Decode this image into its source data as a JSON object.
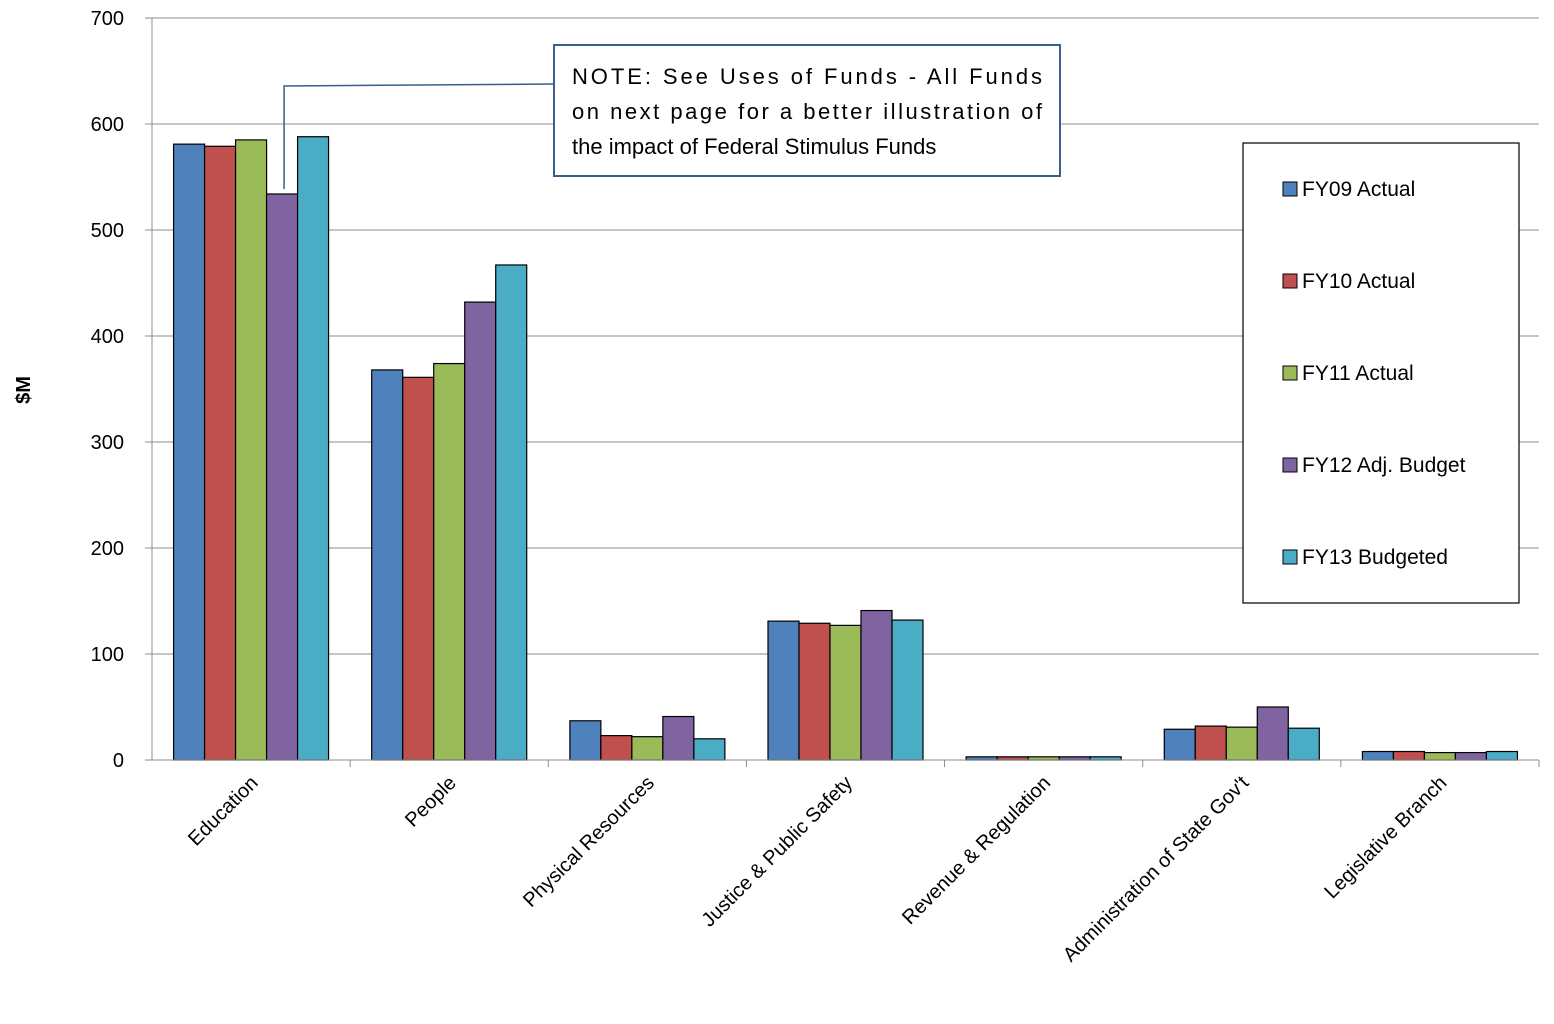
{
  "chart_data": {
    "type": "bar",
    "title": "",
    "xlabel": "",
    "ylabel": "$M",
    "ylim": [
      0,
      700
    ],
    "yticks": [
      0,
      100,
      200,
      300,
      400,
      500,
      600,
      700
    ],
    "grid": true,
    "legend_position": "right",
    "categories": [
      "Education",
      "People",
      "Physical Resources",
      "Justice & Public Safety",
      "Revenue & Regulation",
      "Administration of State Gov't",
      "Legislative Branch"
    ],
    "series": [
      {
        "name": "FY09 Actual",
        "color": "#4F81BD",
        "values": [
          581,
          368,
          37,
          131,
          3,
          29,
          8
        ]
      },
      {
        "name": "FY10 Actual",
        "color": "#C0504D",
        "values": [
          579,
          361,
          23,
          129,
          3,
          32,
          8
        ]
      },
      {
        "name": "FY11 Actual",
        "color": "#9BBB59",
        "values": [
          585,
          374,
          22,
          127,
          3,
          31,
          7
        ]
      },
      {
        "name": "FY12 Adj. Budget",
        "color": "#8064A2",
        "values": [
          534,
          432,
          41,
          141,
          3,
          50,
          7
        ]
      },
      {
        "name": "FY13 Budgeted",
        "color": "#4BACC6",
        "values": [
          588,
          467,
          20,
          132,
          3,
          30,
          8
        ]
      }
    ],
    "annotation": {
      "lines": [
        "NOTE:  See Uses of Funds - All Funds",
        "on next page for a better illustration of",
        "the impact of Federal Stimulus Funds"
      ],
      "points_to_category": "Education",
      "points_to_series": "FY12 Adj. Budget"
    }
  }
}
